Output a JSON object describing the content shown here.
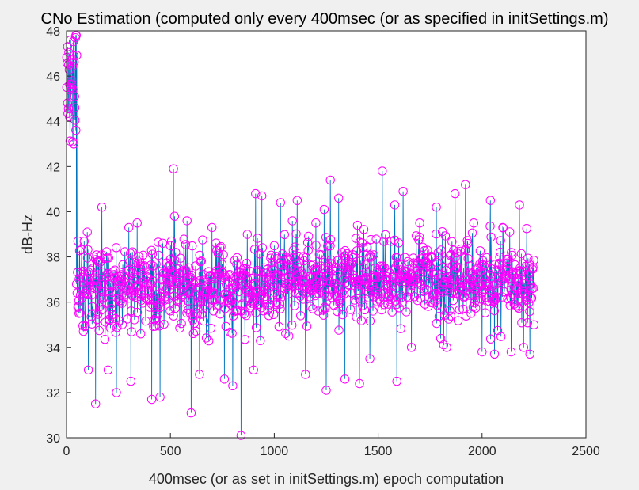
{
  "chart_data": {
    "type": "scatter",
    "plot_style": "stem",
    "title": "CNo Estimation (computed only every 400msec (or as specified in initSettings.m)",
    "xlabel": "400msec (or as set in initSettings.m) epoch computation",
    "ylabel": "dB-Hz",
    "xlim": [
      0,
      2500
    ],
    "ylim": [
      30,
      48
    ],
    "xticks": [
      "0",
      "500",
      "1000",
      "1500",
      "2000",
      "2500"
    ],
    "yticks": [
      "30",
      "32",
      "34",
      "36",
      "38",
      "40",
      "42",
      "44",
      "46",
      "48"
    ],
    "grid": false,
    "legend": "none",
    "n_points": 2250,
    "colors": {
      "stem": "#0072bd",
      "marker": "#ff00ff",
      "axes_bg": "#ffffff",
      "figure_bg": "#f0f0f0"
    },
    "series": [
      {
        "sampled_points": [
          [
            1,
            45.5
          ],
          [
            5,
            47.3
          ],
          [
            10,
            46.5
          ],
          [
            15,
            44.2
          ],
          [
            20,
            47.6
          ],
          [
            25,
            45.8
          ],
          [
            30,
            43.1
          ],
          [
            35,
            46.9
          ],
          [
            40,
            44.6
          ],
          [
            45,
            43.6
          ],
          [
            48,
            36.8
          ],
          [
            55,
            38.7
          ],
          [
            60,
            35.5
          ],
          [
            75,
            36.2
          ],
          [
            100,
            39.1
          ],
          [
            105,
            33.0
          ],
          [
            140,
            31.5
          ],
          [
            170,
            40.2
          ],
          [
            200,
            33.0
          ],
          [
            240,
            32.0
          ],
          [
            300,
            39.3
          ],
          [
            310,
            32.5
          ],
          [
            340,
            39.5
          ],
          [
            410,
            31.7
          ],
          [
            450,
            31.8
          ],
          [
            500,
            38.5
          ],
          [
            515,
            41.9
          ],
          [
            520,
            39.8
          ],
          [
            580,
            39.6
          ],
          [
            600,
            31.1
          ],
          [
            640,
            32.8
          ],
          [
            700,
            39.3
          ],
          [
            760,
            32.6
          ],
          [
            800,
            32.3
          ],
          [
            840,
            30.1
          ],
          [
            870,
            39.0
          ],
          [
            900,
            33.0
          ],
          [
            910,
            40.8
          ],
          [
            940,
            40.7
          ],
          [
            1000,
            38.5
          ],
          [
            1030,
            40.4
          ],
          [
            1070,
            34.5
          ],
          [
            1110,
            40.5
          ],
          [
            1150,
            32.8
          ],
          [
            1200,
            39.5
          ],
          [
            1240,
            40.1
          ],
          [
            1250,
            32.1
          ],
          [
            1270,
            41.4
          ],
          [
            1310,
            40.6
          ],
          [
            1340,
            32.6
          ],
          [
            1400,
            39.4
          ],
          [
            1410,
            32.4
          ],
          [
            1460,
            33.5
          ],
          [
            1520,
            41.8
          ],
          [
            1580,
            40.3
          ],
          [
            1590,
            32.5
          ],
          [
            1620,
            40.9
          ],
          [
            1660,
            34.0
          ],
          [
            1700,
            39.5
          ],
          [
            1780,
            40.2
          ],
          [
            1830,
            34.0
          ],
          [
            1870,
            40.8
          ],
          [
            1920,
            41.2
          ],
          [
            1960,
            39.5
          ],
          [
            2000,
            33.8
          ],
          [
            2040,
            40.5
          ],
          [
            2060,
            33.7
          ],
          [
            2100,
            39.3
          ],
          [
            2140,
            33.8
          ],
          [
            2180,
            40.3
          ],
          [
            2200,
            34.0
          ],
          [
            2230,
            33.7
          ],
          [
            2250,
            35.0
          ]
        ],
        "level_sections": [
          {
            "x_range": [
              0,
              50
            ],
            "center": 45.8,
            "spread": 1.3
          },
          {
            "x_range": [
              50,
              960
            ],
            "center": 36.6,
            "spread": 1.3
          },
          {
            "x_range": [
              960,
              1750
            ],
            "center": 37.0,
            "spread": 1.3
          },
          {
            "x_range": [
              1750,
              2250
            ],
            "center": 37.0,
            "spread": 1.4
          }
        ]
      }
    ]
  }
}
